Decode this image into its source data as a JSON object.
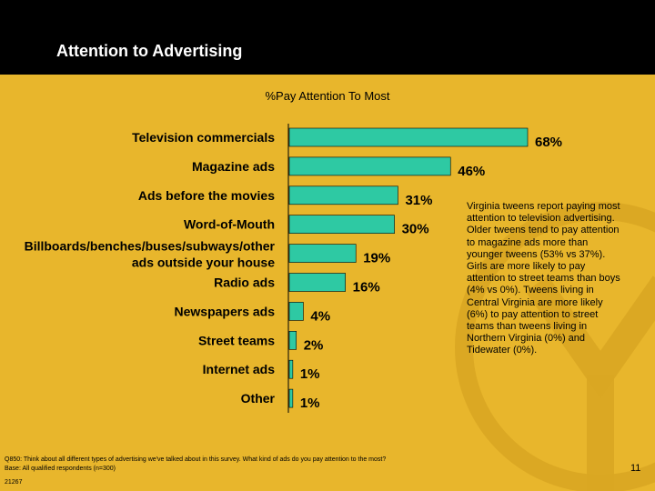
{
  "header": {
    "title": "Attention to Advertising"
  },
  "chart_data": {
    "type": "bar",
    "orientation": "horizontal",
    "title": "%Pay Attention To Most",
    "categories": [
      "Television commercials",
      "Magazine ads",
      "Ads before the movies",
      "Word-of-Mouth",
      "Billboards/benches/buses/subways/other ads outside your house",
      "Radio ads",
      "Newspapers ads",
      "Street teams",
      "Internet ads",
      "Other"
    ],
    "category_lines": [
      [
        "Television commercials"
      ],
      [
        "Magazine ads"
      ],
      [
        "Ads before the movies"
      ],
      [
        "Word-of-Mouth"
      ],
      [
        "Billboards/benches/buses/subways/other",
        "ads outside your house"
      ],
      [
        "Radio ads"
      ],
      [
        "Newspapers ads"
      ],
      [
        "Street teams"
      ],
      [
        "Internet ads"
      ],
      [
        "Other"
      ]
    ],
    "values": [
      68,
      46,
      31,
      30,
      19,
      16,
      4,
      2,
      1,
      1
    ],
    "value_labels": [
      "68%",
      "46%",
      "31%",
      "30%",
      "19%",
      "16%",
      "4%",
      "2%",
      "1%",
      "1%"
    ],
    "xlim": [
      0,
      68
    ],
    "grid": false,
    "bar_color": "#2ec9a3"
  },
  "note": "Virginia tweens report paying most attention to television advertising. Older tweens tend to pay attention to magazine ads more than younger tweens (53% vs 37%). Girls are more likely to pay attention to street teams than boys (4% vs 0%). Tweens living in Central Virginia are more likely (6%) to pay attention to street teams than tweens living in Northern Virginia (0%) and Tidewater (0%).",
  "footnote": {
    "question": "Q850: Think about all different types of advertising we've talked about in this survey. What kind of ads do you pay attention to the most?",
    "base": "Base: All qualified respondents (n=300)"
  },
  "job_code": "21267",
  "page_number": "11"
}
